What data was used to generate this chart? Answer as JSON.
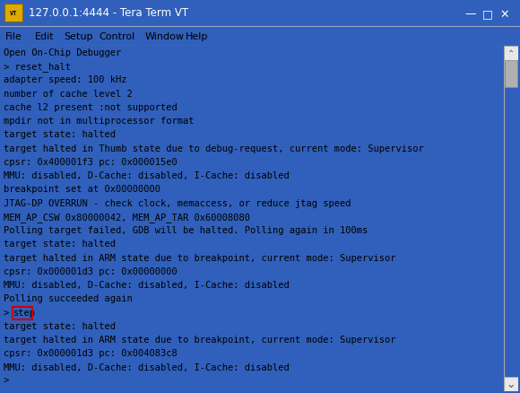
{
  "title_bar_text": "127.0.0.1:4444 - Tera Term VT",
  "title_bar_bg": "#2255aa",
  "title_bar_fg": "#ffffff",
  "menu_items": [
    "File",
    "Edit",
    "Setup",
    "Control",
    "Window",
    "Help"
  ],
  "menu_bg": "#f0f0f0",
  "menu_fg": "#000000",
  "terminal_bg": "#fffff0",
  "terminal_fg": "#000000",
  "terminal_lines": [
    "Open On-Chip Debugger",
    "> reset_halt",
    "adapter speed: 100 kHz",
    "number of cache level 2",
    "cache l2 present :not supported",
    "mpdir not in multiprocessor format",
    "target state: halted",
    "target halted in Thumb state due to debug-request, current mode: Supervisor",
    "cpsr: 0x400001f3 pc: 0x000015e0",
    "MMU: disabled, D-Cache: disabled, I-Cache: disabled",
    "breakpoint set at 0x00000000",
    "JTAG-DP OVERRUN - check clock, memaccess, or reduce jtag speed",
    "MEM_AP_CSW 0x80000042, MEM_AP_TAR 0x60008080",
    "Polling target failed, GDB will be halted. Polling again in 100ms",
    "target state: halted",
    "target halted in ARM state due to breakpoint, current mode: Supervisor",
    "cpsr: 0x000001d3 pc: 0x00000000",
    "MMU: disabled, D-Cache: disabled, I-Cache: disabled",
    "Polling succeeded again",
    "> step",
    "target state: halted",
    "target halted in ARM state due to breakpoint, current mode: Supervisor",
    "cpsr: 0x000001d3 pc: 0x004083c8",
    "MMU: disabled, D-Cache: disabled, I-Cache: disabled",
    ">"
  ],
  "highlight_line_index": 19,
  "highlight_word": "step",
  "highlight_box_color": "#cc0000",
  "title_icon_color": "#ddaa00",
  "scrollbar_bg": "#e8e8e8",
  "scrollbar_thumb": "#b0b0b0",
  "window_bg": "#f0f0f0",
  "border_color": "#3060bb",
  "fig_width": 5.8,
  "fig_height": 4.39,
  "dpi": 100
}
